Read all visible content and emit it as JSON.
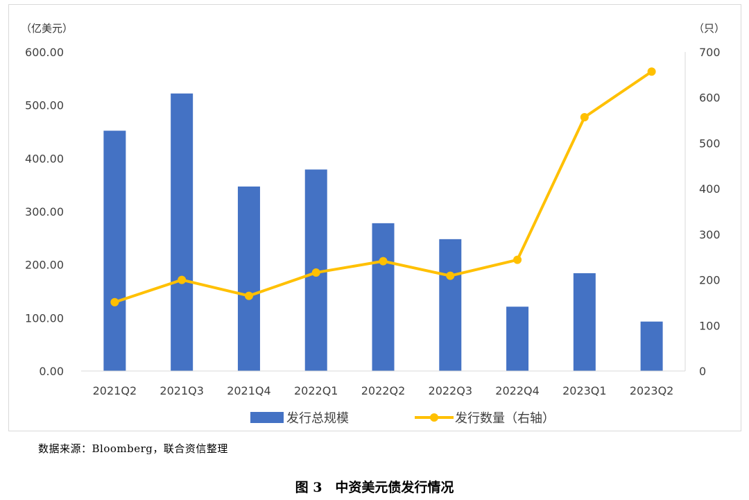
{
  "chart_data": {
    "type": "bar+line",
    "categories": [
      "2021Q2",
      "2021Q3",
      "2021Q4",
      "2022Q1",
      "2022Q2",
      "2022Q3",
      "2022Q4",
      "2023Q1",
      "2023Q2"
    ],
    "series": [
      {
        "name": "发行总规模",
        "type": "bar",
        "axis": "left",
        "color": "#4472C4",
        "values": [
          452,
          522,
          347,
          379,
          278,
          248,
          121,
          184,
          93
        ]
      },
      {
        "name": "发行数量（右轴）",
        "type": "line",
        "axis": "right",
        "color": "#FFC000",
        "values": [
          151,
          200,
          165,
          216,
          241,
          209,
          244,
          557,
          657
        ]
      }
    ],
    "left_axis": {
      "unit_label": "（亿美元）",
      "ylim": [
        0,
        600
      ],
      "ticks": [
        "0.00",
        "100.00",
        "200.00",
        "300.00",
        "400.00",
        "500.00",
        "600.00"
      ]
    },
    "right_axis": {
      "unit_label": "（只）",
      "ylim": [
        0,
        700
      ],
      "ticks": [
        "0",
        "100",
        "200",
        "300",
        "400",
        "500",
        "600",
        "700"
      ]
    },
    "grid": false,
    "legend_position": "bottom"
  },
  "source_note": "数据来源：Bloomberg，联合资信整理",
  "figure_caption": "图 3　中资美元债发行情况"
}
